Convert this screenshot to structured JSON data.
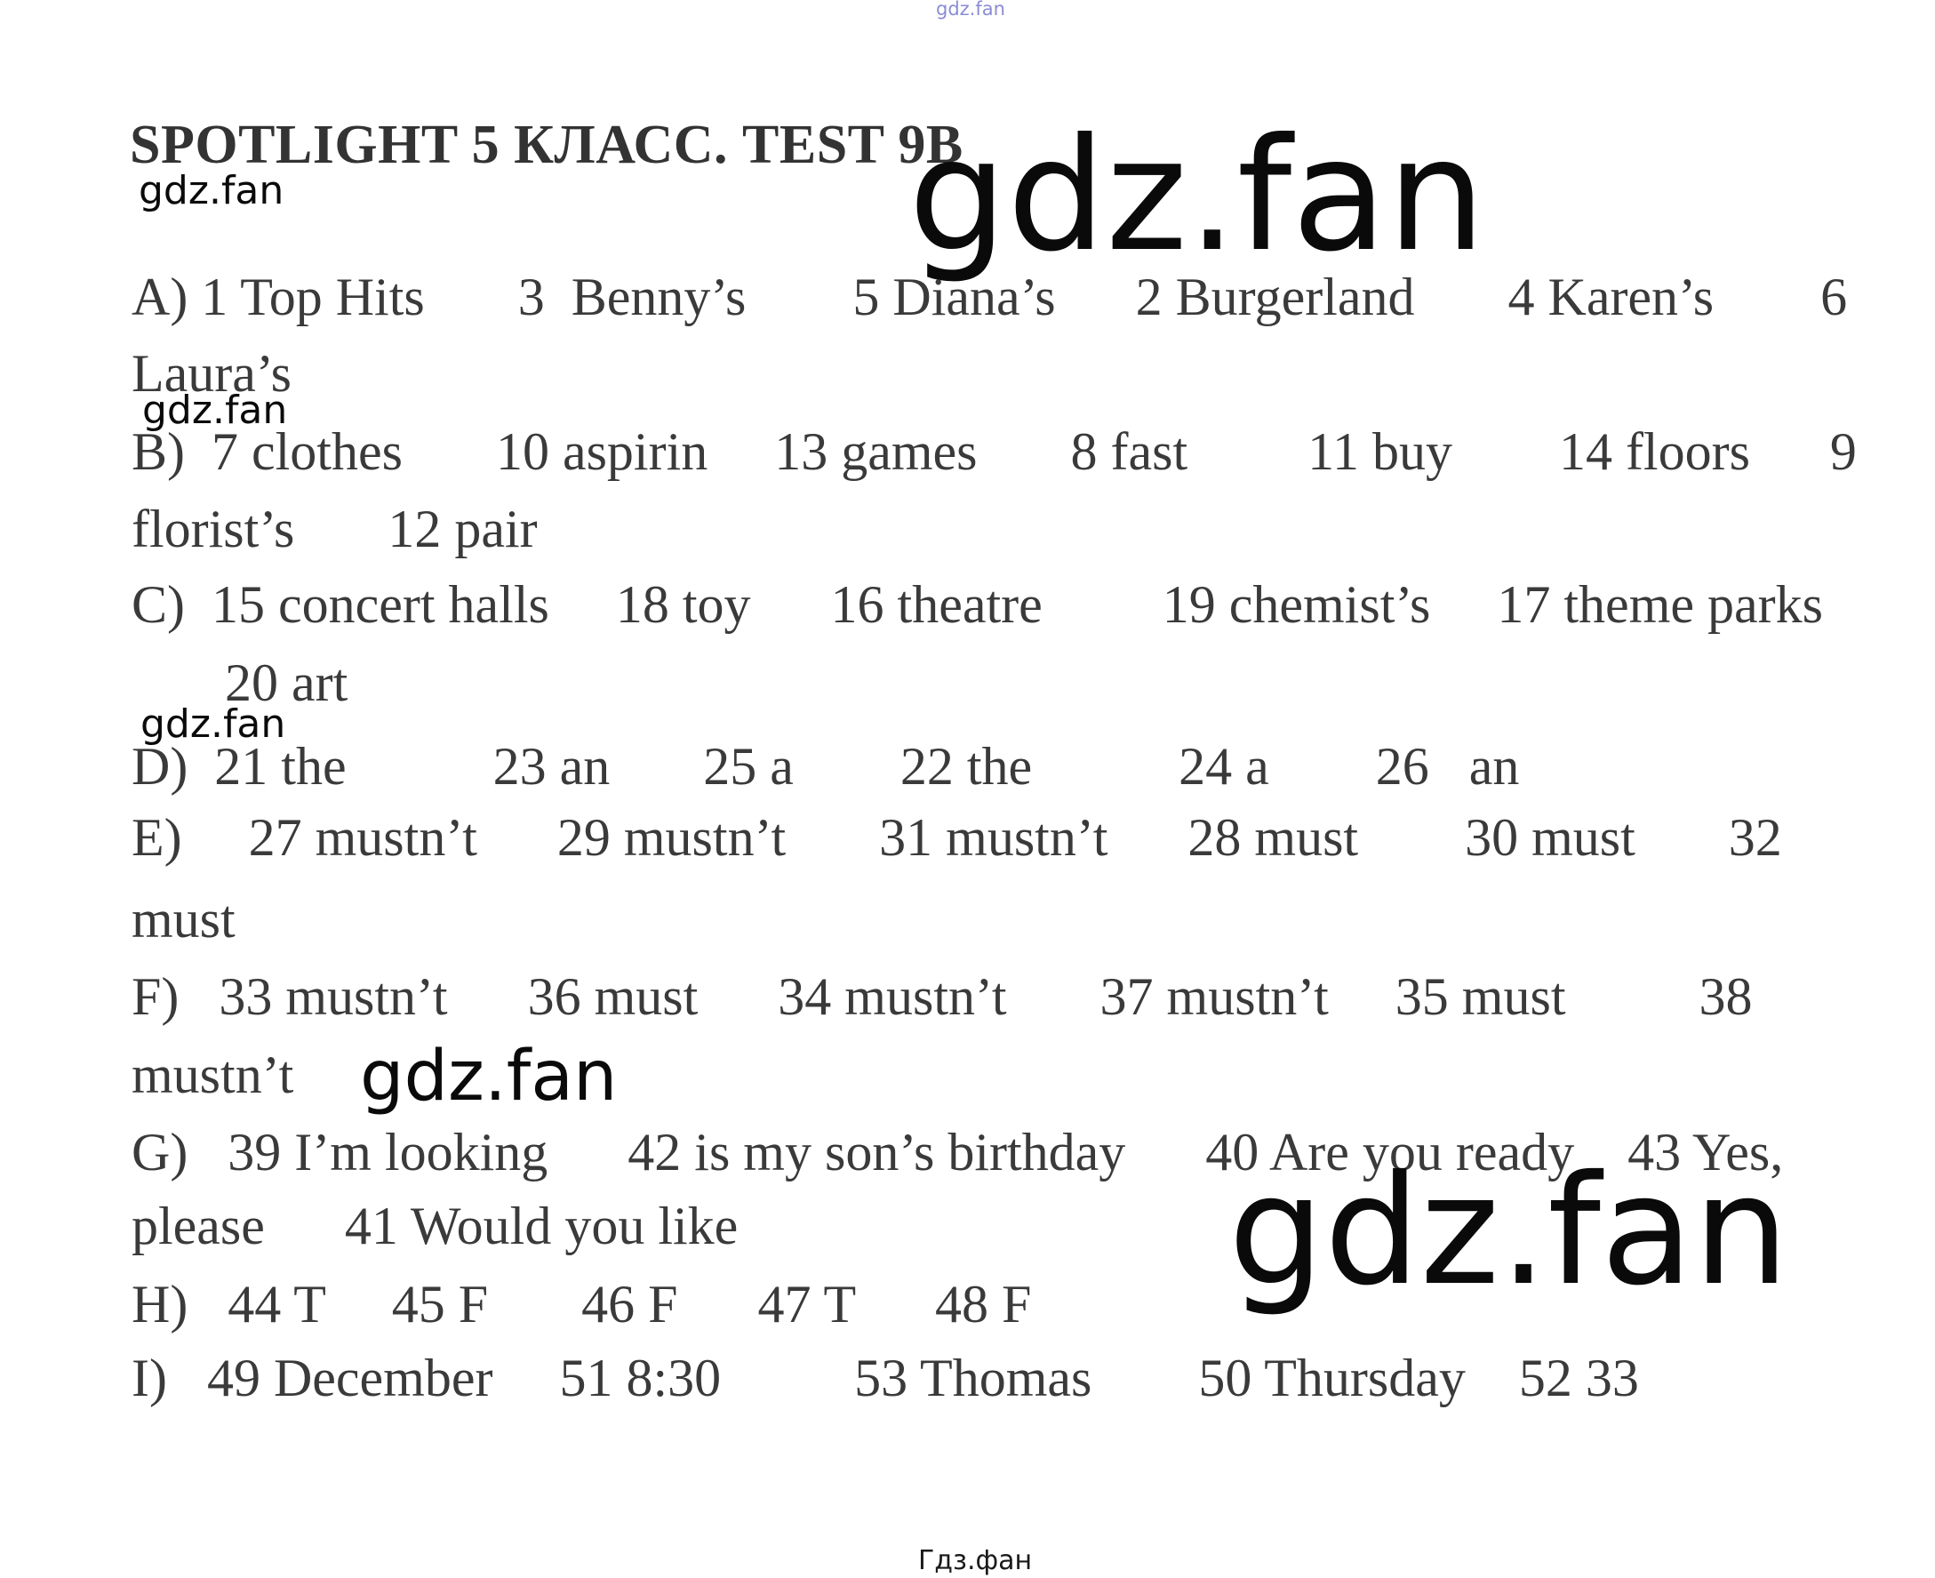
{
  "page": {
    "title": "SPOTLIGHT 5 КЛАСС. TEST 9B",
    "footer": "Гдз.фан"
  },
  "watermarks": {
    "site": "gdz.fan",
    "tiny_top": "gdz.fan",
    "small_1": "gdz.fan",
    "big_1": "gdz.fan",
    "small_2": "gdz.fan",
    "small_3": "gdz.fan",
    "medium": "gdz.fan",
    "big_2": "gdz.fan"
  },
  "answers": {
    "rows": [
      "A) 1 Top Hits       3  Benny’s        5 Diana’s      2 Burgerland       4 Karen’s        6",
      "Laura’s",
      "B)  7 clothes       10 aspirin     13 games       8 fast         11 buy        14 floors      9",
      "florist’s       12 pair",
      "C)  15 concert halls     18 toy      16 theatre         19 chemist’s     17 theme parks",
      "       20 art",
      "D)  21 the           23 an       25 a        22 the           24 a        26   an",
      "E)     27 mustn’t      29 mustn’t       31 mustn’t      28 must        30 must       32",
      "must",
      "F)   33 mustn’t      36 must      34 mustn’t       37 mustn’t     35 must          38",
      "mustn’t",
      "G)   39 I’m looking      42 is my son’s birthday      40 Are you ready    43 Yes,",
      "please      41 Would you like",
      "H)   44 T     45 F       46 F      47 T      48 F",
      "I)   49 December     51 8:30          53 Thomas        50 Thursday    52 33"
    ],
    "sections": {
      "A": "1 Top Hits, 3 Benny’s, 5 Diana’s, 2 Burgerland, 4 Karen’s, 6 Laura’s",
      "B": "7 clothes, 10 aspirin, 13 games, 8 fast, 11 buy, 14 floors, 9 florist’s, 12 pair",
      "C": "15 concert halls, 18 toy, 16 theatre, 19 chemist’s, 17 theme parks, 20 art",
      "D": "21 the, 23 an, 25 a, 22 the, 24 a, 26 an",
      "E": "27 mustn’t, 29 mustn’t, 31 mustn’t, 28 must, 30 must, 32 must",
      "F": "33 mustn’t, 36 must, 34 mustn’t, 37 mustn’t, 35 must, 38 mustn’t",
      "G": "39 I’m looking, 42 is my son’s birthday, 40 Are you ready, 43 Yes, please, 41 Would you like",
      "H": "44 T, 45 F, 46 F, 47 T, 48 F",
      "I": "49 December, 51 8:30, 53 Thomas, 50 Thursday, 52 33"
    }
  },
  "colors": {
    "text": "#3a3a3a",
    "title": "#333333",
    "watermark_black": "#0a0a0a",
    "watermark_blue": "#6464c8",
    "background": "#ffffff"
  }
}
